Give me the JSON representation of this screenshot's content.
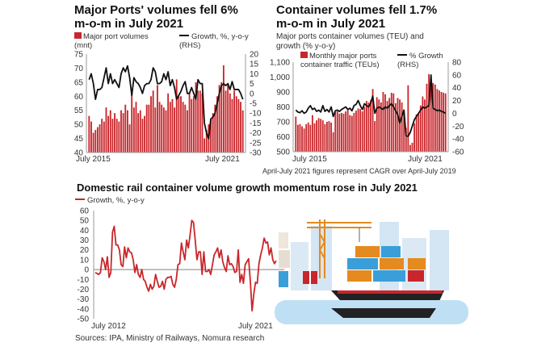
{
  "colors": {
    "bar": "#c8262b",
    "line": "#111111",
    "rail": "#c8262b",
    "zero": "#999999"
  },
  "chart_data": [
    {
      "type": "bar",
      "title": "Major Ports' volumes fell 6% m-o-m in July 2021",
      "legend": {
        "bars": "Major port volumes (mnt)",
        "line": "Growth, %, y-o-y (RHS)"
      },
      "x_start_label": "July 2015",
      "x_end_label": "July 2021",
      "ylim": [
        40,
        75
      ],
      "yticks": [
        40,
        45,
        50,
        55,
        60,
        65,
        70,
        75
      ],
      "y2lim": [
        -30,
        20
      ],
      "y2ticks": [
        -30,
        -25,
        -20,
        -15,
        -10,
        -5,
        0,
        5,
        10,
        15,
        20
      ],
      "series": [
        {
          "name": "Major port volumes (mnt)",
          "axis": "left",
          "values": [
            53,
            51,
            47,
            48,
            49,
            50,
            52,
            51,
            56,
            53,
            55,
            52,
            54,
            52,
            51,
            55,
            54,
            57,
            55,
            50,
            62,
            56,
            58,
            54,
            55,
            52,
            53,
            57,
            57,
            60,
            62,
            56,
            64,
            58,
            57,
            56,
            55,
            61,
            58,
            59,
            56,
            66,
            60,
            60,
            58,
            57,
            55,
            61,
            59,
            60,
            65,
            62,
            62,
            61,
            45,
            48,
            50,
            52,
            54,
            57,
            60,
            64,
            65,
            71,
            62,
            64,
            61,
            59,
            62,
            60,
            59,
            58,
            55
          ]
        },
        {
          "name": "Growth, %, y-o-y (RHS)",
          "axis": "right",
          "values": [
            7,
            10,
            5,
            -3,
            2,
            2,
            3,
            8,
            13,
            5,
            10,
            5,
            7,
            5,
            3,
            10,
            13,
            11,
            14,
            8,
            -1,
            8,
            6,
            5,
            3,
            0,
            4,
            5,
            5,
            7,
            13,
            11,
            5,
            5,
            6,
            10,
            7,
            11,
            4,
            7,
            3,
            -3,
            -1,
            1,
            4,
            6,
            0,
            0,
            3,
            0,
            -3,
            7,
            5,
            5,
            -15,
            -20,
            -23,
            -13,
            -12,
            -10,
            -5,
            0,
            4,
            5,
            4,
            5,
            2,
            6,
            2,
            2,
            2,
            0,
            -3
          ]
        }
      ]
    },
    {
      "type": "bar",
      "title": "Container volumes fell 1.7% m-o-m in July 2021",
      "subtitle": "Major ports container volumes (TEU) and growth (% y-o-y)",
      "legend": {
        "bars": "Monthly major ports container traffic (TEUs)",
        "line": "% Growth (RHS)"
      },
      "x_start_label": "July 2015",
      "x_end_label": "July 2021",
      "ylim": [
        500,
        1100
      ],
      "yticks": [
        500,
        600,
        700,
        800,
        900,
        1000,
        1100
      ],
      "y2lim": [
        -60,
        80
      ],
      "y2ticks": [
        -60,
        -40,
        -20,
        0,
        20,
        40,
        60,
        80
      ],
      "note": "April-July 2021 figures represent CAGR over April-July 2019",
      "series": [
        {
          "name": "Monthly major ports container traffic (TEUs)",
          "axis": "left",
          "values": [
            735,
            680,
            685,
            670,
            655,
            685,
            695,
            680,
            745,
            690,
            710,
            725,
            720,
            710,
            685,
            700,
            705,
            695,
            630,
            765,
            770,
            755,
            760,
            755,
            770,
            780,
            745,
            740,
            760,
            775,
            790,
            785,
            770,
            800,
            840,
            830,
            845,
            920,
            705,
            865,
            850,
            830,
            900,
            885,
            840,
            860,
            895,
            890,
            825,
            860,
            850,
            830,
            780,
            660,
            945,
            545,
            560,
            690,
            750,
            760,
            810,
            870,
            850,
            955,
            1020,
            930,
            960,
            950,
            920,
            910,
            900,
            895,
            890
          ]
        },
        {
          "name": "% Growth (RHS)",
          "axis": "right",
          "values": [
            5,
            2,
            1,
            4,
            0,
            2,
            8,
            12,
            6,
            8,
            3,
            5,
            2,
            12,
            3,
            6,
            2,
            10,
            -5,
            4,
            5,
            3,
            6,
            8,
            10,
            6,
            8,
            4,
            12,
            14,
            20,
            12,
            6,
            15,
            12,
            10,
            16,
            27,
            0,
            8,
            10,
            8,
            6,
            10,
            8,
            12,
            15,
            10,
            4,
            -2,
            -15,
            -5,
            5,
            -35,
            -36,
            -30,
            -20,
            -10,
            -5,
            0,
            5,
            10,
            8,
            10,
            12,
            60,
            8,
            6,
            4,
            5,
            3,
            2,
            0
          ]
        }
      ]
    },
    {
      "type": "line",
      "title": "Domestic rail container volume growth momentum rose in July 2021",
      "legend": "Growth, %, y-o-y",
      "x_start_label": "July 2012",
      "x_end_label": "July 2021",
      "ylim": [
        -50,
        60
      ],
      "yticks": [
        -50,
        -40,
        -30,
        -20,
        -10,
        0,
        10,
        20,
        30,
        40,
        50,
        60
      ],
      "series": [
        {
          "name": "Growth, %, y-o-y",
          "values": [
            -3,
            -4,
            -5,
            -3,
            12,
            8,
            0,
            13,
            -8,
            -3,
            38,
            44,
            25,
            25,
            20,
            5,
            3,
            23,
            12,
            22,
            18,
            17,
            10,
            -3,
            5,
            -5,
            -8,
            0,
            -10,
            -12,
            -18,
            -22,
            -15,
            -20,
            -17,
            -5,
            -12,
            -18,
            -17,
            -12,
            -20,
            -10,
            -8,
            -8,
            -7,
            -15,
            -18,
            -10,
            5,
            6,
            27,
            18,
            10,
            30,
            22,
            35,
            50,
            48,
            30,
            10,
            18,
            18,
            -5,
            18,
            -2,
            -2,
            0,
            -5,
            5,
            15,
            18,
            22,
            12,
            20,
            8,
            2,
            -2,
            14,
            5,
            6,
            3,
            -3,
            -2,
            20,
            -13,
            -5,
            -14,
            5,
            8,
            11,
            -12,
            -42,
            -25,
            -13,
            -14,
            6,
            15,
            22,
            32,
            27,
            28,
            15,
            22,
            10,
            6,
            9
          ]
        }
      ]
    }
  ],
  "source": "Sources: IPA, Ministry of Railways, Nomura research"
}
